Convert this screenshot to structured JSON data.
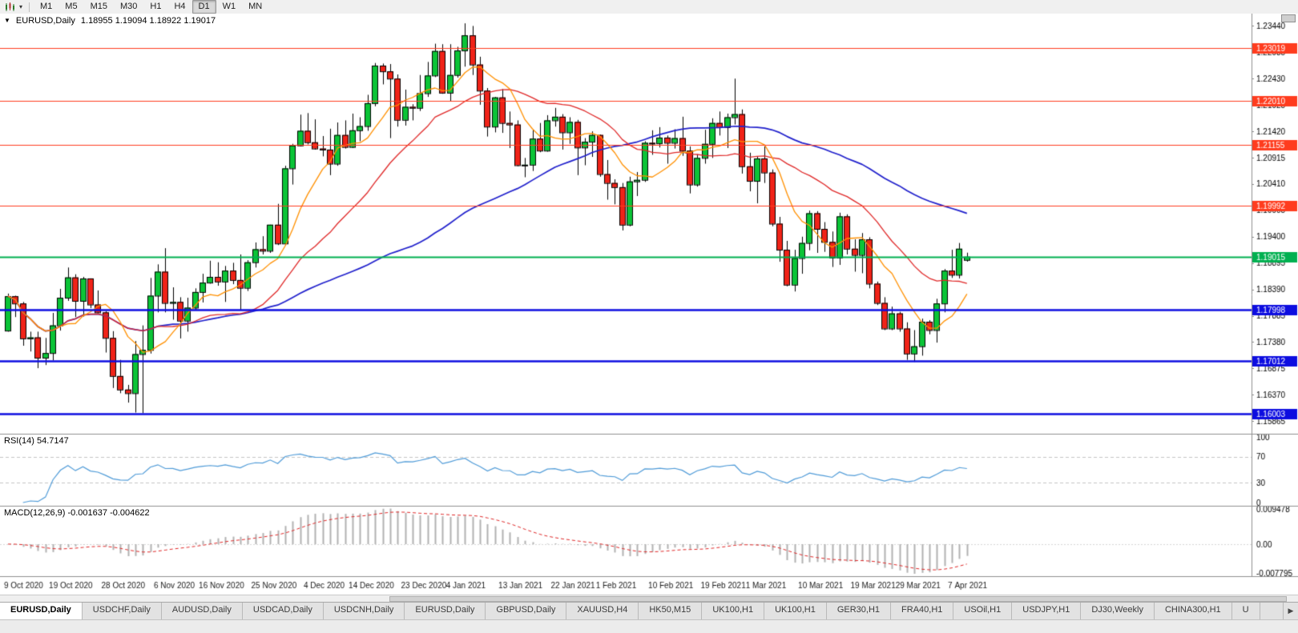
{
  "toolbar": {
    "timeframes": [
      "M1",
      "M5",
      "M15",
      "M30",
      "H1",
      "H4",
      "D1",
      "W1",
      "MN"
    ],
    "active": "D1"
  },
  "icons": {
    "dropdown_caret": "▾",
    "collapse_arrow": "▼",
    "tab_scroll_right": "▶"
  },
  "chart_header": {
    "symbol_label": "EURUSD,Daily",
    "ohlc": "1.18955 1.19094 1.18922 1.19017"
  },
  "rsi_label": "RSI(14) 54.7147",
  "macd_label": "MACD(12,26,9) -0.001637 -0.004622",
  "tabs": [
    "EURUSD,Daily",
    "USDCHF,Daily",
    "AUDUSD,Daily",
    "USDCAD,Daily",
    "USDCNH,Daily",
    "EURUSD,Daily",
    "GBPUSD,Daily",
    "XAUUSD,H4",
    "HK50,M15",
    "UK100,H1",
    "UK100,H1",
    "GER30,H1",
    "FRA40,H1",
    "USOil,H1",
    "USDJPY,H1",
    "DJ30,Weekly",
    "CHINA300,H1",
    "U"
  ],
  "active_tab_index": 0,
  "chart_data": {
    "type": "candlestick",
    "symbol": "EURUSD",
    "timeframe": "Daily",
    "current_ohlc": {
      "open": 1.18955,
      "high": 1.19094,
      "low": 1.18922,
      "close": 1.19017
    },
    "price_range": {
      "min": 1.157,
      "max": 1.236
    },
    "price_axis_labels": [
      "1.23440",
      "1.22935",
      "1.22430",
      "1.21925",
      "1.21420",
      "1.20915",
      "1.20410",
      "1.19905",
      "1.19400",
      "1.18895",
      "1.18390",
      "1.17885",
      "1.17380",
      "1.16875",
      "1.16370",
      "1.15865"
    ],
    "candle_colors": {
      "up": "#0bc437",
      "down": "#f02318",
      "outline": "#000000"
    },
    "hlines": [
      {
        "price": 1.23019,
        "label": "1.23019",
        "color": "#ff3c1e",
        "width": 1.2
      },
      {
        "price": 1.2201,
        "label": "1.22010",
        "color": "#ff3c1e",
        "width": 1.2
      },
      {
        "price": 1.21155,
        "label": "1.21155",
        "color": "#ff3c1e",
        "width": 1.2
      },
      {
        "price": 1.19992,
        "label": "1.19992",
        "color": "#ff3c1e",
        "width": 1.2
      },
      {
        "price": 1.19015,
        "label": "1.19015",
        "color": "#00b050",
        "width": 1.8
      },
      {
        "price": 1.17998,
        "label": "1.17998",
        "color": "#0d0de0",
        "width": 2.4
      },
      {
        "price": 1.17012,
        "label": "1.17012",
        "color": "#0d0de0",
        "width": 2.4
      },
      {
        "price": 1.16003,
        "label": "1.16003",
        "color": "#0d0de0",
        "width": 2.4
      }
    ],
    "moving_averages": [
      {
        "period": 55,
        "color": "#2020cc",
        "width": 1.7
      },
      {
        "period": 21,
        "color": "#e02828",
        "width": 1.3
      },
      {
        "period": 8,
        "color": "#ff9000",
        "width": 1.3
      }
    ],
    "date_labels": [
      "9 Oct 2020",
      "19 Oct 2020",
      "28 Oct 2020",
      "6 Nov 2020",
      "16 Nov 2020",
      "25 Nov 2020",
      "4 Dec 2020",
      "14 Dec 2020",
      "23 Dec 2020",
      "4 Jan 2021",
      "13 Jan 2021",
      "22 Jan 2021",
      "1 Feb 2021",
      "10 Feb 2021",
      "19 Feb 2021",
      "1 Mar 2021",
      "10 Mar 2021",
      "19 Mar 2021",
      "29 Mar 2021",
      "7 Apr 2021"
    ],
    "date_label_indices": [
      0,
      6,
      13,
      20,
      26,
      33,
      40,
      46,
      53,
      59,
      66,
      73,
      79,
      86,
      93,
      99,
      106,
      113,
      119,
      126
    ],
    "candles": [
      [
        1.176,
        1.1831,
        1.1758,
        1.1826
      ],
      [
        1.1826,
        1.1827,
        1.1786,
        1.1812
      ],
      [
        1.1812,
        1.1815,
        1.1731,
        1.1745
      ],
      [
        1.1745,
        1.1758,
        1.172,
        1.1747
      ],
      [
        1.1747,
        1.1758,
        1.1688,
        1.1708
      ],
      [
        1.1708,
        1.1746,
        1.1694,
        1.1717
      ],
      [
        1.1717,
        1.1794,
        1.1703,
        1.177
      ],
      [
        1.177,
        1.184,
        1.176,
        1.1823
      ],
      [
        1.1823,
        1.1881,
        1.1817,
        1.1862
      ],
      [
        1.1862,
        1.1868,
        1.1786,
        1.1817
      ],
      [
        1.1817,
        1.1863,
        1.1787,
        1.186
      ],
      [
        1.186,
        1.186,
        1.1803,
        1.181
      ],
      [
        1.181,
        1.1837,
        1.1793,
        1.1795
      ],
      [
        1.1795,
        1.1797,
        1.1718,
        1.1746
      ],
      [
        1.1746,
        1.1759,
        1.165,
        1.1673
      ],
      [
        1.1673,
        1.1704,
        1.164,
        1.1647
      ],
      [
        1.1647,
        1.1656,
        1.1622,
        1.164
      ],
      [
        1.164,
        1.174,
        1.1603,
        1.1715
      ],
      [
        1.1715,
        1.177,
        1.1602,
        1.1723
      ],
      [
        1.1723,
        1.1861,
        1.1716,
        1.1827
      ],
      [
        1.1827,
        1.1887,
        1.1795,
        1.1873
      ],
      [
        1.1873,
        1.1918,
        1.1795,
        1.1813
      ],
      [
        1.1813,
        1.1843,
        1.1781,
        1.1815
      ],
      [
        1.1815,
        1.1824,
        1.1745,
        1.1779
      ],
      [
        1.1779,
        1.1823,
        1.1758,
        1.1804
      ],
      [
        1.1804,
        1.1841,
        1.1799,
        1.1834
      ],
      [
        1.1834,
        1.1869,
        1.1814,
        1.1852
      ],
      [
        1.1852,
        1.1894,
        1.185,
        1.1863
      ],
      [
        1.1863,
        1.1891,
        1.1846,
        1.1854
      ],
      [
        1.1854,
        1.1884,
        1.1815,
        1.1875
      ],
      [
        1.1875,
        1.189,
        1.1849,
        1.1857
      ],
      [
        1.1857,
        1.1906,
        1.18,
        1.1842
      ],
      [
        1.1842,
        1.1895,
        1.1836,
        1.1891
      ],
      [
        1.1891,
        1.1929,
        1.1881,
        1.1916
      ],
      [
        1.1916,
        1.1941,
        1.1906,
        1.1913
      ],
      [
        1.1913,
        1.1963,
        1.1909,
        1.1963
      ],
      [
        1.1963,
        1.2003,
        1.1924,
        1.1927
      ],
      [
        1.1927,
        1.2076,
        1.1923,
        1.2071
      ],
      [
        1.2071,
        1.2118,
        1.204,
        1.2115
      ],
      [
        1.2115,
        1.2174,
        1.2113,
        1.2143
      ],
      [
        1.2143,
        1.2177,
        1.2117,
        1.2121
      ],
      [
        1.2121,
        1.2165,
        1.2107,
        1.2109
      ],
      [
        1.2109,
        1.2133,
        1.2094,
        1.2107
      ],
      [
        1.2107,
        1.2147,
        1.2058,
        1.208
      ],
      [
        1.208,
        1.2159,
        1.2076,
        1.2135
      ],
      [
        1.2135,
        1.2163,
        1.2109,
        1.2112
      ],
      [
        1.2112,
        1.2176,
        1.211,
        1.2144
      ],
      [
        1.2144,
        1.2169,
        1.2123,
        1.2152
      ],
      [
        1.2152,
        1.2212,
        1.2143,
        1.2196
      ],
      [
        1.2196,
        1.2273,
        1.219,
        1.2268
      ],
      [
        1.2268,
        1.2272,
        1.2232,
        1.2257
      ],
      [
        1.2257,
        1.2271,
        1.2129,
        1.2243
      ],
      [
        1.2243,
        1.2251,
        1.2151,
        1.2164
      ],
      [
        1.2164,
        1.2222,
        1.2153,
        1.2189
      ],
      [
        1.2189,
        1.2194,
        1.2163,
        1.2187
      ],
      [
        1.2187,
        1.225,
        1.2181,
        1.2215
      ],
      [
        1.2215,
        1.2275,
        1.2208,
        1.2249
      ],
      [
        1.2249,
        1.231,
        1.2246,
        1.2296
      ],
      [
        1.2296,
        1.2309,
        1.2214,
        1.2216
      ],
      [
        1.2216,
        1.2309,
        1.22,
        1.225
      ],
      [
        1.225,
        1.2304,
        1.2245,
        1.2297
      ],
      [
        1.2297,
        1.2349,
        1.2266,
        1.2326
      ],
      [
        1.2326,
        1.2344,
        1.225,
        1.227
      ],
      [
        1.227,
        1.2285,
        1.2193,
        1.222
      ],
      [
        1.222,
        1.2225,
        1.2132,
        1.2151
      ],
      [
        1.2151,
        1.2208,
        1.214,
        1.2207
      ],
      [
        1.2207,
        1.2223,
        1.2139,
        1.2158
      ],
      [
        1.2158,
        1.218,
        1.211,
        1.2155
      ],
      [
        1.2155,
        1.2163,
        1.2075,
        1.2077
      ],
      [
        1.2077,
        1.2091,
        1.2054,
        1.2078
      ],
      [
        1.2078,
        1.2145,
        1.2066,
        1.2128
      ],
      [
        1.2128,
        1.2158,
        1.2102,
        1.2105
      ],
      [
        1.2105,
        1.2173,
        1.2103,
        1.2163
      ],
      [
        1.2163,
        1.2187,
        1.2151,
        1.217
      ],
      [
        1.217,
        1.2175,
        1.2107,
        1.214
      ],
      [
        1.214,
        1.2169,
        1.2118,
        1.216
      ],
      [
        1.216,
        1.2164,
        1.2058,
        1.2111
      ],
      [
        1.2111,
        1.2129,
        1.2077,
        1.2122
      ],
      [
        1.2122,
        1.2142,
        1.2093,
        1.2135
      ],
      [
        1.2135,
        1.2136,
        1.2055,
        1.206
      ],
      [
        1.206,
        1.2087,
        1.2011,
        1.2043
      ],
      [
        1.2043,
        1.205,
        1.2002,
        1.2035
      ],
      [
        1.2035,
        1.2043,
        1.1952,
        1.1963
      ],
      [
        1.1963,
        1.2055,
        1.196,
        1.2046
      ],
      [
        1.2046,
        1.2064,
        1.2018,
        1.2049
      ],
      [
        1.2049,
        1.2123,
        1.2045,
        1.212
      ],
      [
        1.212,
        1.2144,
        1.2097,
        1.2119
      ],
      [
        1.2119,
        1.215,
        1.2111,
        1.213
      ],
      [
        1.213,
        1.2134,
        1.208,
        1.212
      ],
      [
        1.212,
        1.2146,
        1.2109,
        1.2129
      ],
      [
        1.2129,
        1.217,
        1.2095,
        1.2105
      ],
      [
        1.2105,
        1.2113,
        1.2023,
        1.204
      ],
      [
        1.204,
        1.2098,
        1.2036,
        1.2091
      ],
      [
        1.2091,
        1.2145,
        1.208,
        1.2118
      ],
      [
        1.2118,
        1.2167,
        1.2091,
        1.2158
      ],
      [
        1.2158,
        1.218,
        1.2134,
        1.215
      ],
      [
        1.215,
        1.2176,
        1.211,
        1.2169
      ],
      [
        1.2169,
        1.2243,
        1.2155,
        1.2175
      ],
      [
        1.2175,
        1.2184,
        1.2061,
        1.2075
      ],
      [
        1.2075,
        1.2101,
        1.2027,
        1.2047
      ],
      [
        1.2047,
        1.2094,
        1.2004,
        1.209
      ],
      [
        1.209,
        1.2113,
        1.2043,
        1.2063
      ],
      [
        1.2063,
        1.2069,
        1.196,
        1.1965
      ],
      [
        1.1965,
        1.1978,
        1.1892,
        1.1915
      ],
      [
        1.1915,
        1.1932,
        1.1845,
        1.1848
      ],
      [
        1.1848,
        1.1915,
        1.1835,
        1.1899
      ],
      [
        1.1899,
        1.194,
        1.1869,
        1.1928
      ],
      [
        1.1928,
        1.199,
        1.1914,
        1.1985
      ],
      [
        1.1985,
        1.1989,
        1.1909,
        1.1955
      ],
      [
        1.1955,
        1.1968,
        1.1911,
        1.193
      ],
      [
        1.193,
        1.195,
        1.1882,
        1.19
      ],
      [
        1.19,
        1.1986,
        1.1886,
        1.1979
      ],
      [
        1.1979,
        1.1983,
        1.1906,
        1.1917
      ],
      [
        1.1917,
        1.1935,
        1.1873,
        1.1905
      ],
      [
        1.1905,
        1.1947,
        1.187,
        1.1935
      ],
      [
        1.1935,
        1.1939,
        1.1841,
        1.185
      ],
      [
        1.185,
        1.1854,
        1.1809,
        1.1813
      ],
      [
        1.1813,
        1.1824,
        1.1761,
        1.1764
      ],
      [
        1.1764,
        1.1806,
        1.1761,
        1.1793
      ],
      [
        1.1793,
        1.1796,
        1.1758,
        1.1764
      ],
      [
        1.1764,
        1.1776,
        1.1704,
        1.1716
      ],
      [
        1.1716,
        1.1761,
        1.17,
        1.173
      ],
      [
        1.173,
        1.1783,
        1.1712,
        1.1777
      ],
      [
        1.1777,
        1.178,
        1.1753,
        1.1761
      ],
      [
        1.1761,
        1.1821,
        1.1737,
        1.1812
      ],
      [
        1.1812,
        1.1878,
        1.1795,
        1.1875
      ],
      [
        1.1875,
        1.1915,
        1.1861,
        1.1867
      ],
      [
        1.1867,
        1.1928,
        1.186,
        1.1917
      ],
      [
        1.18955,
        1.19094,
        1.18922,
        1.19017
      ]
    ],
    "rsi": {
      "period": 14,
      "current_value": 54.7147,
      "levels": [
        70,
        30
      ],
      "axis_labels": [
        "100",
        "70",
        "30",
        "0"
      ],
      "color": "#4f9bd8"
    },
    "macd": {
      "fast": 12,
      "slow": 26,
      "signal": 9,
      "current_values": [
        -0.001637,
        -0.004622
      ],
      "axis_labels": [
        "0.009478",
        "0.00",
        "-0.007795"
      ],
      "range": {
        "max": 0.009478,
        "min": -0.007795
      },
      "hist_color": "#b2b2b2",
      "signal_color": "#e02828"
    }
  }
}
